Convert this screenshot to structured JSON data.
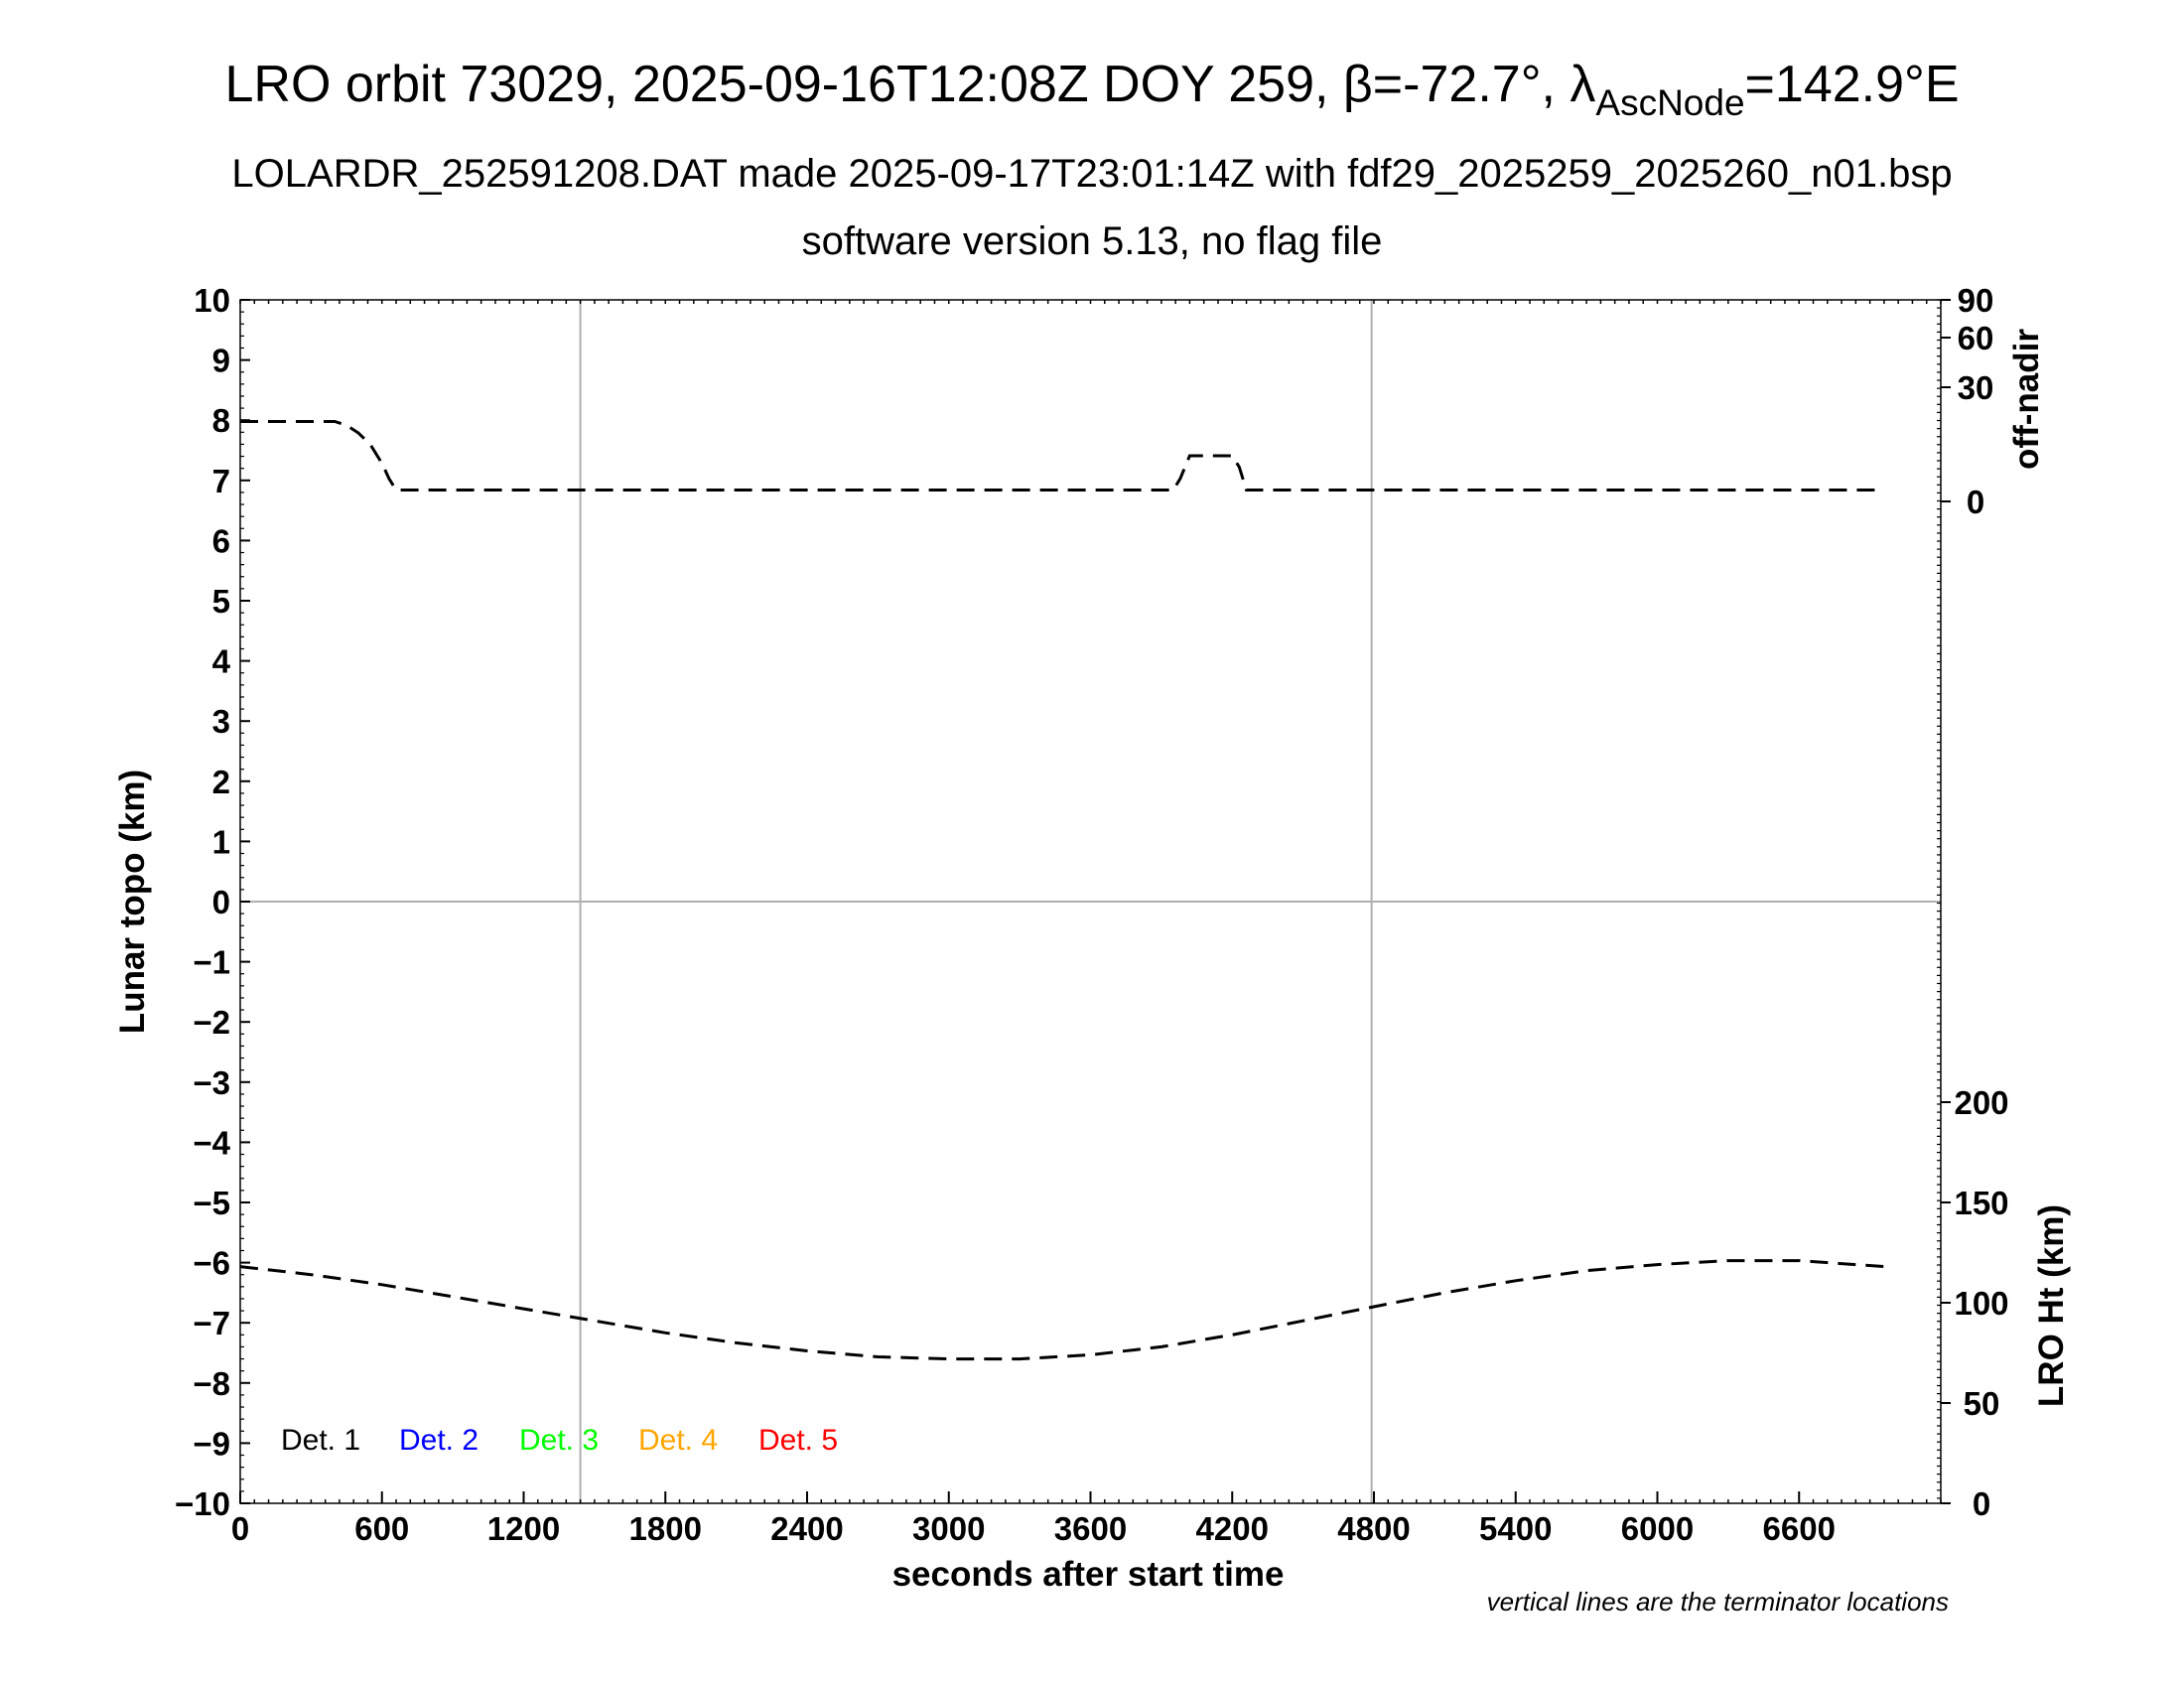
{
  "title": {
    "main": "LRO orbit 73029, 2025-09-16T12:08Z DOY 259, β=-72.7°, λ",
    "sub": "AscNode",
    "tail": "=142.9°E"
  },
  "subtitle_1": "LOLARDR_252591208.DAT made 2025-09-17T23:01:14Z with fdf29_2025259_2025260_n01.bsp",
  "subtitle_2": "software version 5.13, no flag file",
  "note": "vertical lines are the terminator locations",
  "chart_data": {
    "type": "line",
    "grid": false,
    "legend_placement": "bottom-left",
    "x_axis": {
      "label": "seconds after start time",
      "range": [
        0,
        7200
      ],
      "ticks": [
        0,
        600,
        1200,
        1800,
        2400,
        3000,
        3600,
        4200,
        4800,
        5400,
        6000,
        6600
      ]
    },
    "y_left": {
      "label": "Lunar topo (km)",
      "range": [
        -10,
        10
      ],
      "ticks": [
        10,
        9,
        8,
        7,
        6,
        5,
        4,
        3,
        2,
        1,
        0,
        -1,
        -2,
        -3,
        -4,
        -5,
        -6,
        -7,
        -8,
        -9,
        -10
      ],
      "tick_labels": [
        "10",
        "9",
        "8",
        "7",
        "6",
        "5",
        "4",
        "3",
        "2",
        "1",
        "0",
        "−1",
        "−2",
        "−3",
        "−4",
        "−5",
        "−6",
        "−7",
        "−8",
        "−9",
        "−10"
      ]
    },
    "y_right_top": {
      "label": "off-nadir",
      "ticks": [
        90,
        60,
        30,
        0
      ],
      "tick_labels": [
        "90",
        "60",
        "30",
        "0"
      ]
    },
    "y_right_bottom": {
      "label": "LRO Ht (km)",
      "range": [
        0,
        250
      ],
      "ticks": [
        0,
        50,
        100,
        150,
        200
      ],
      "tick_labels": [
        "0",
        "50",
        "100",
        "150",
        "200"
      ]
    },
    "terminator_lines_x": [
      1440,
      4790
    ],
    "zero_line_y": 0,
    "legend": [
      {
        "label": "Det. 1",
        "color": "#000000"
      },
      {
        "label": "Det. 2",
        "color": "#0000ff"
      },
      {
        "label": "Det. 3",
        "color": "#00ff00"
      },
      {
        "label": "Det. 4",
        "color": "#ffa500"
      },
      {
        "label": "Det. 5",
        "color": "#ff0000"
      }
    ],
    "series": [
      {
        "axis": "off-nadir",
        "style": "dashed",
        "color": "#000000",
        "x": [
          0,
          400,
          450,
          500,
          550,
          600,
          630,
          660,
          3950,
          3980,
          4020,
          4200,
          4230,
          4250,
          4260,
          6960
        ],
        "y": [
          21,
          21,
          20,
          18,
          15,
          10,
          6,
          3,
          3,
          6,
          12,
          12,
          9,
          5,
          3,
          3
        ]
      },
      {
        "axis": "LRO Ht (km)",
        "style": "dashed",
        "color": "#000000",
        "x": [
          0,
          300,
          600,
          900,
          1200,
          1500,
          1800,
          2100,
          2400,
          2700,
          3000,
          3300,
          3600,
          3900,
          4200,
          4500,
          4800,
          5100,
          5400,
          5700,
          6000,
          6300,
          6600,
          6960
        ],
        "y": [
          118,
          114,
          109,
          103,
          97,
          91,
          85,
          80,
          76,
          73,
          72,
          72,
          74,
          78,
          84,
          91,
          98,
          105,
          111,
          116,
          119,
          121,
          121,
          118
        ]
      }
    ]
  }
}
